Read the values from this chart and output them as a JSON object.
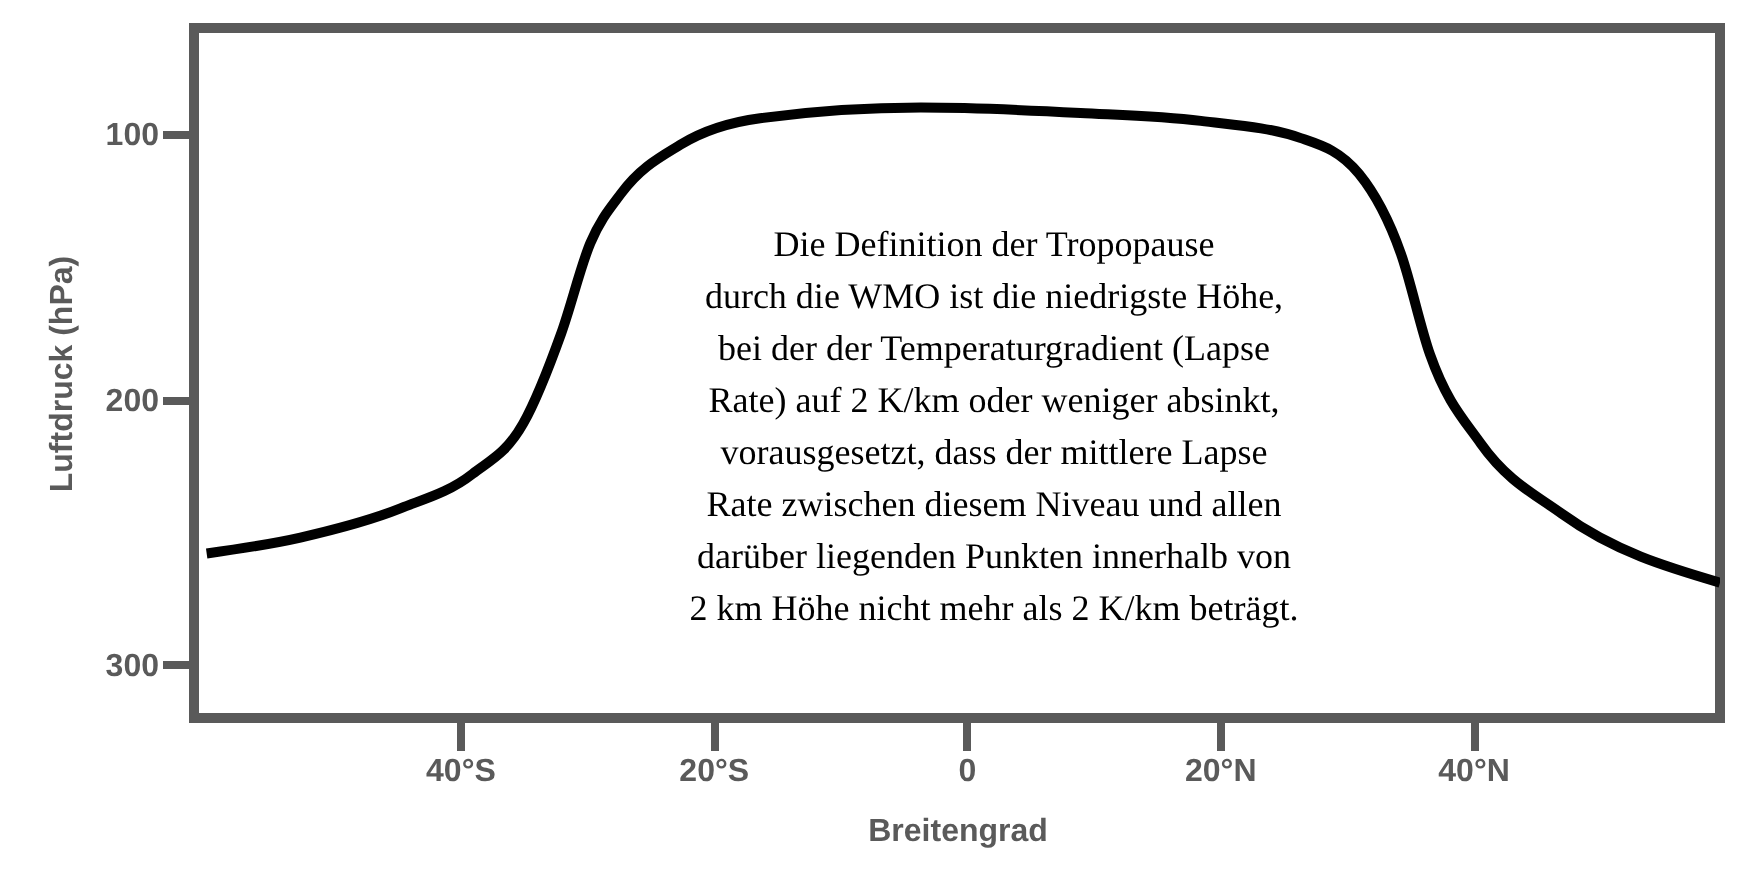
{
  "chart_data": {
    "type": "line",
    "xlabel": "Breitengrad",
    "ylabel": "Luftdruck (hPa)",
    "x": [
      -60,
      -52.6,
      -44.7,
      -39,
      -35,
      -32,
      -29.7,
      -27.3,
      -22.6,
      -16.3,
      -3.6,
      9,
      18.5,
      26.4,
      31,
      34.3,
      36.6,
      40.6,
      47,
      59.5
    ],
    "series": [
      {
        "color": "#000000",
        "values": [
          258,
          252,
          241,
          228,
          209,
          175,
          141,
          122.5,
          104,
          94,
          90,
          92,
          95,
          101.5,
          115,
          145,
          183,
          216.5,
          243,
          269
        ]
      }
    ],
    "xlim": [
      -61,
      59.5
    ],
    "ylim": [
      320,
      60
    ],
    "xticks": [
      {
        "value": -40,
        "label": "40°S"
      },
      {
        "value": -20,
        "label": "20°S"
      },
      0,
      {
        "value": 20,
        "label": "20°N"
      },
      {
        "value": 40,
        "label": "40°N"
      }
    ],
    "yticks": [
      100,
      200,
      300
    ],
    "grid": false,
    "legend": false,
    "marker": "none",
    "line_style": "solid",
    "annotations": [
      "Die Definition der Tropopause\ndurch die WMO ist die niedrigste Höhe,\nbei der der Temperaturgradient (Lapse\nRate) auf 2 K/km oder weniger absinkt,\nvorausgesetzt, dass der mittlere Lapse\nRate zwischen diesem Niveau und allen\ndarüber liegenden Punkten innerhalb von\n2 km Höhe nicht mehr als 2 K/km beträgt."
    ]
  }
}
